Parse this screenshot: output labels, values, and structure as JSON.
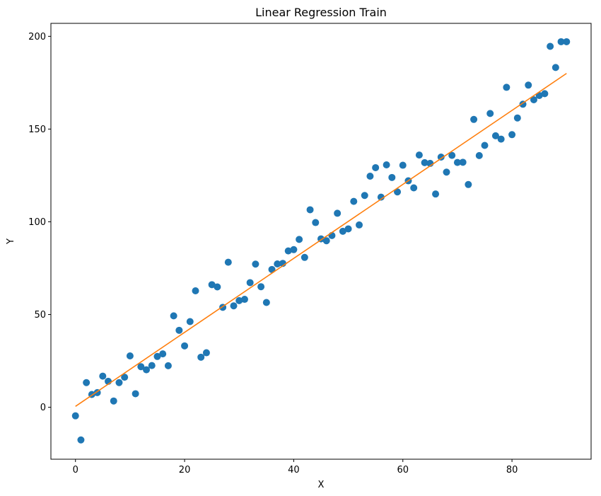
{
  "chart_data": {
    "type": "scatter",
    "title": "Linear Regression Train",
    "xlabel": "X",
    "ylabel": "Y",
    "xlim": [
      -4.5,
      94.5
    ],
    "ylim": [
      -28,
      207
    ],
    "xticks": [
      0,
      20,
      40,
      60,
      80
    ],
    "yticks": [
      0,
      50,
      100,
      150,
      200
    ],
    "grid": false,
    "colors": {
      "points": "#1f77b4",
      "line": "#ff7f0e"
    },
    "series": [
      {
        "kind": "scatter",
        "x": [
          0,
          1,
          2,
          3,
          4,
          5,
          6,
          7,
          8,
          9,
          10,
          11,
          12,
          13,
          14,
          15,
          16,
          17,
          18,
          19,
          20,
          21,
          22,
          23,
          24,
          25,
          26,
          27,
          28,
          29,
          30,
          31,
          32,
          33,
          34,
          35,
          36,
          37,
          38,
          39,
          40,
          41,
          42,
          43,
          44,
          45,
          46,
          47,
          48,
          49,
          50,
          51,
          52,
          53,
          54,
          55,
          56,
          57,
          58,
          59,
          60,
          61,
          62,
          63,
          64,
          65,
          66,
          67,
          68,
          69,
          70,
          71,
          72,
          73,
          74,
          75,
          76,
          77,
          78,
          79,
          80,
          81,
          82,
          83,
          84,
          85,
          86,
          87,
          88,
          89,
          90
        ],
        "y": [
          -4.6,
          -17.6,
          13.3,
          6.9,
          7.9,
          16.8,
          14.0,
          3.4,
          13.3,
          16.2,
          27.7,
          7.3,
          21.9,
          20.2,
          22.5,
          27.4,
          28.8,
          22.4,
          49.3,
          41.5,
          33.1,
          46.2,
          62.8,
          27.0,
          29.4,
          66.1,
          64.9,
          53.9,
          78.2,
          54.7,
          57.5,
          58.2,
          67.2,
          77.2,
          65.0,
          56.5,
          74.3,
          77.3,
          77.6,
          84.3,
          85.0,
          90.5,
          80.8,
          106.5,
          99.6,
          90.8,
          89.8,
          92.6,
          104.6,
          94.9,
          96.2,
          111.0,
          98.3,
          114.2,
          124.6,
          129.2,
          113.3,
          130.7,
          123.9,
          116.1,
          130.5,
          122.1,
          118.3,
          136.0,
          131.9,
          131.5,
          115.0,
          134.9,
          126.8,
          135.8,
          132.0,
          132.1,
          120.1,
          155.2,
          135.7,
          141.2,
          158.4,
          146.4,
          144.6,
          172.5,
          147.0,
          156.0,
          163.4,
          173.7,
          165.8,
          168.1,
          169.1,
          194.6,
          183.2,
          197.1,
          197.1
        ]
      },
      {
        "kind": "line",
        "x": [
          0,
          90
        ],
        "y": [
          0.5,
          180.0
        ]
      }
    ]
  }
}
